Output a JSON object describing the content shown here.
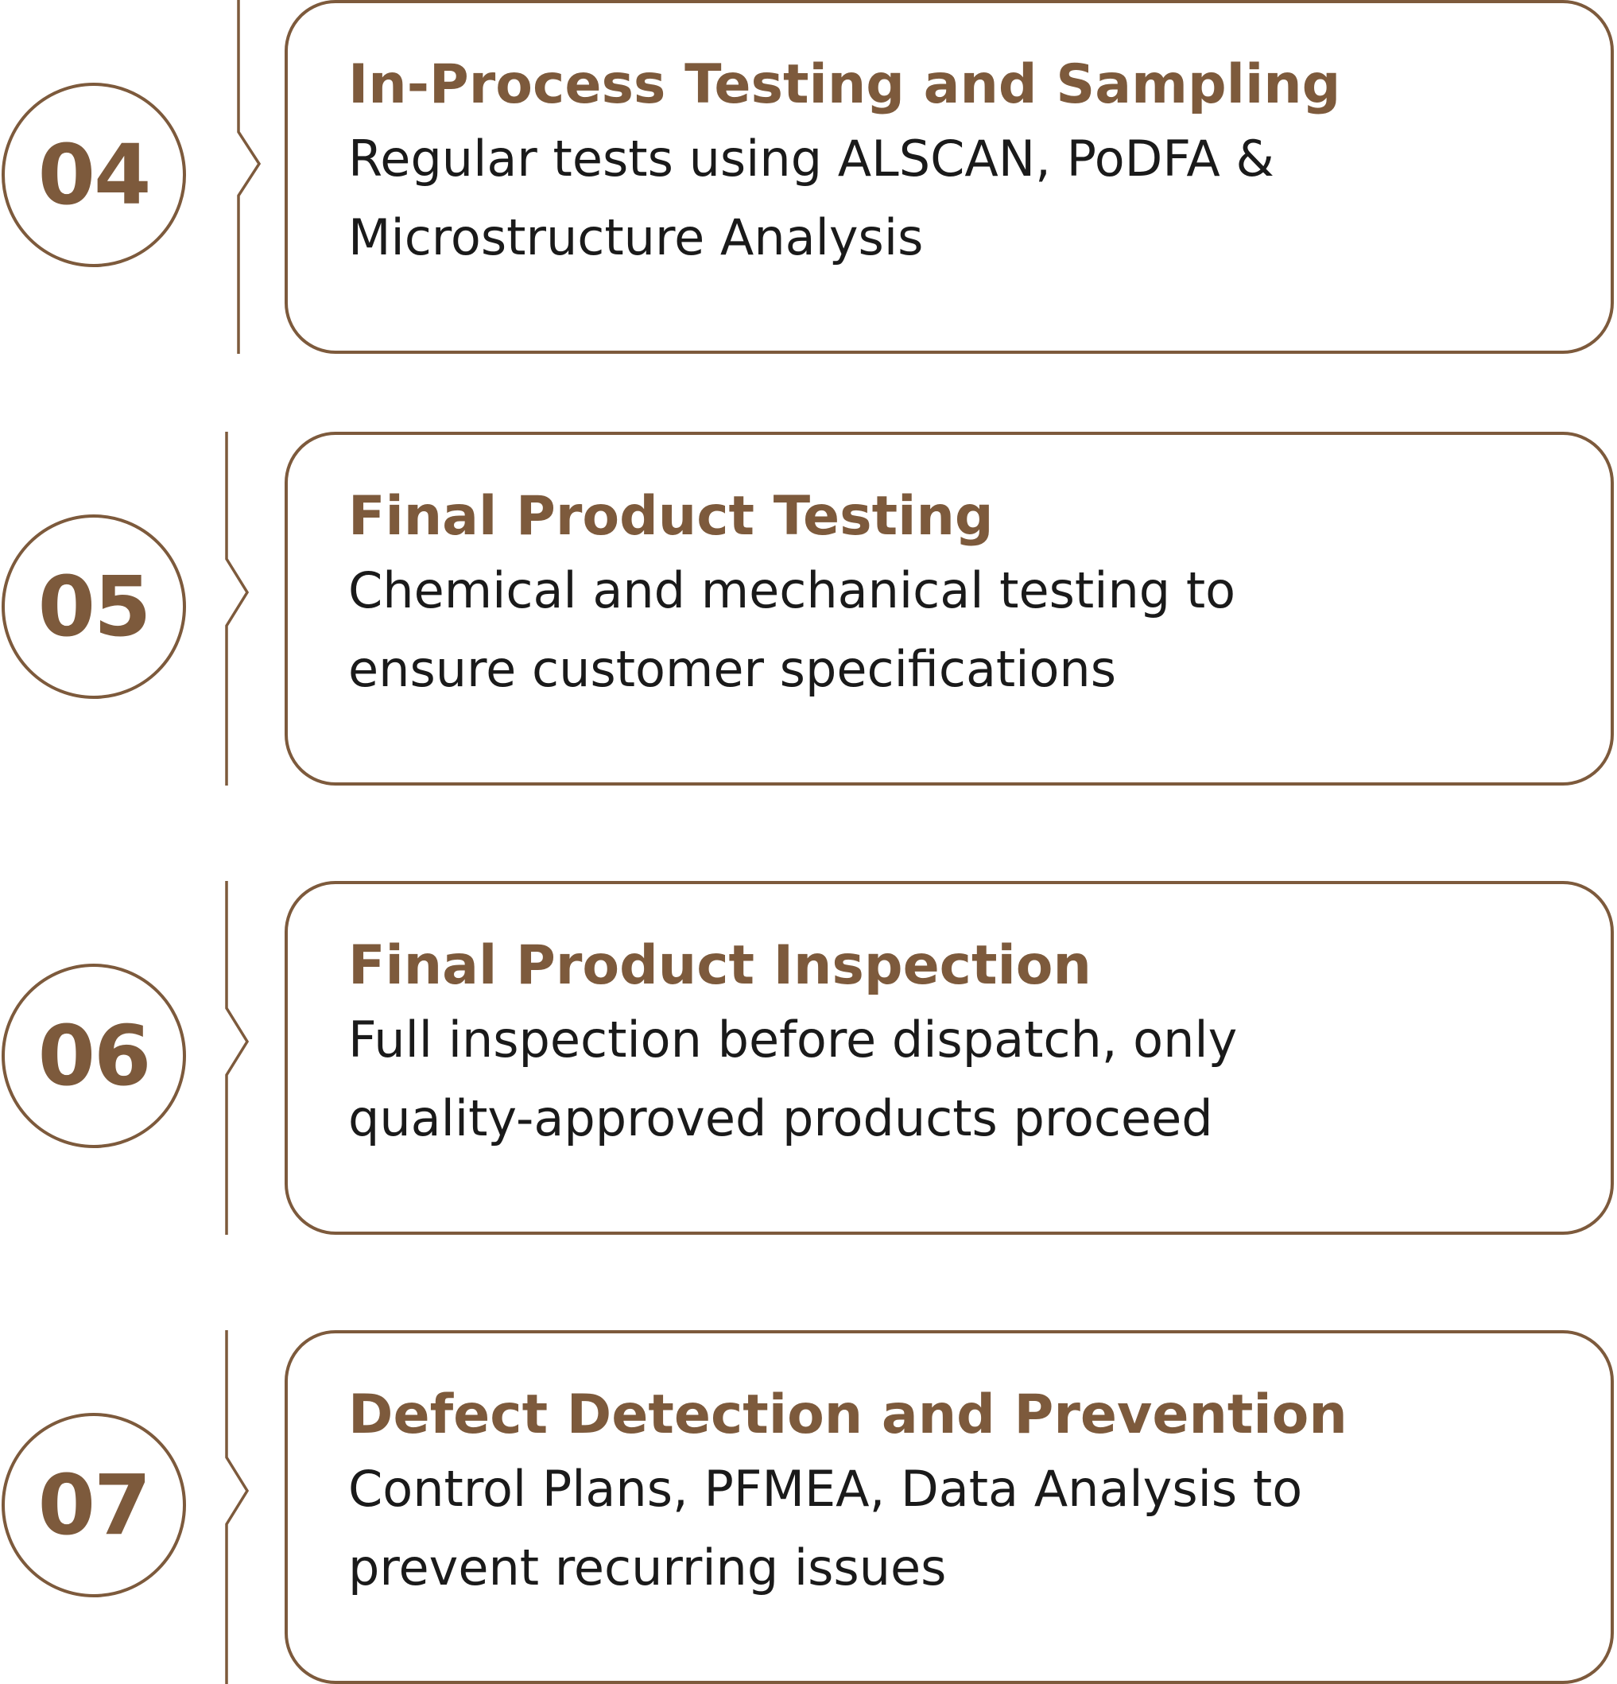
{
  "colors": {
    "accent": "#7d5a3c",
    "text": "#1a1a1a",
    "background": "#ffffff"
  },
  "steps": [
    {
      "number": "04",
      "title": "In-Process Testing and Sampling",
      "description": "Regular tests using ALSCAN, PoDFA & Microstructure Analysis"
    },
    {
      "number": "05",
      "title": "Final Product Testing",
      "description": "Chemical and mechanical testing to ensure customer specifications"
    },
    {
      "number": "06",
      "title": "Final Product Inspection",
      "description": "Full inspection before dispatch, only quality-approved products proceed"
    },
    {
      "number": "07",
      "title": "Defect Detection and Prevention",
      "description": "Control Plans, PFMEA, Data Analysis to prevent recurring issues"
    }
  ]
}
